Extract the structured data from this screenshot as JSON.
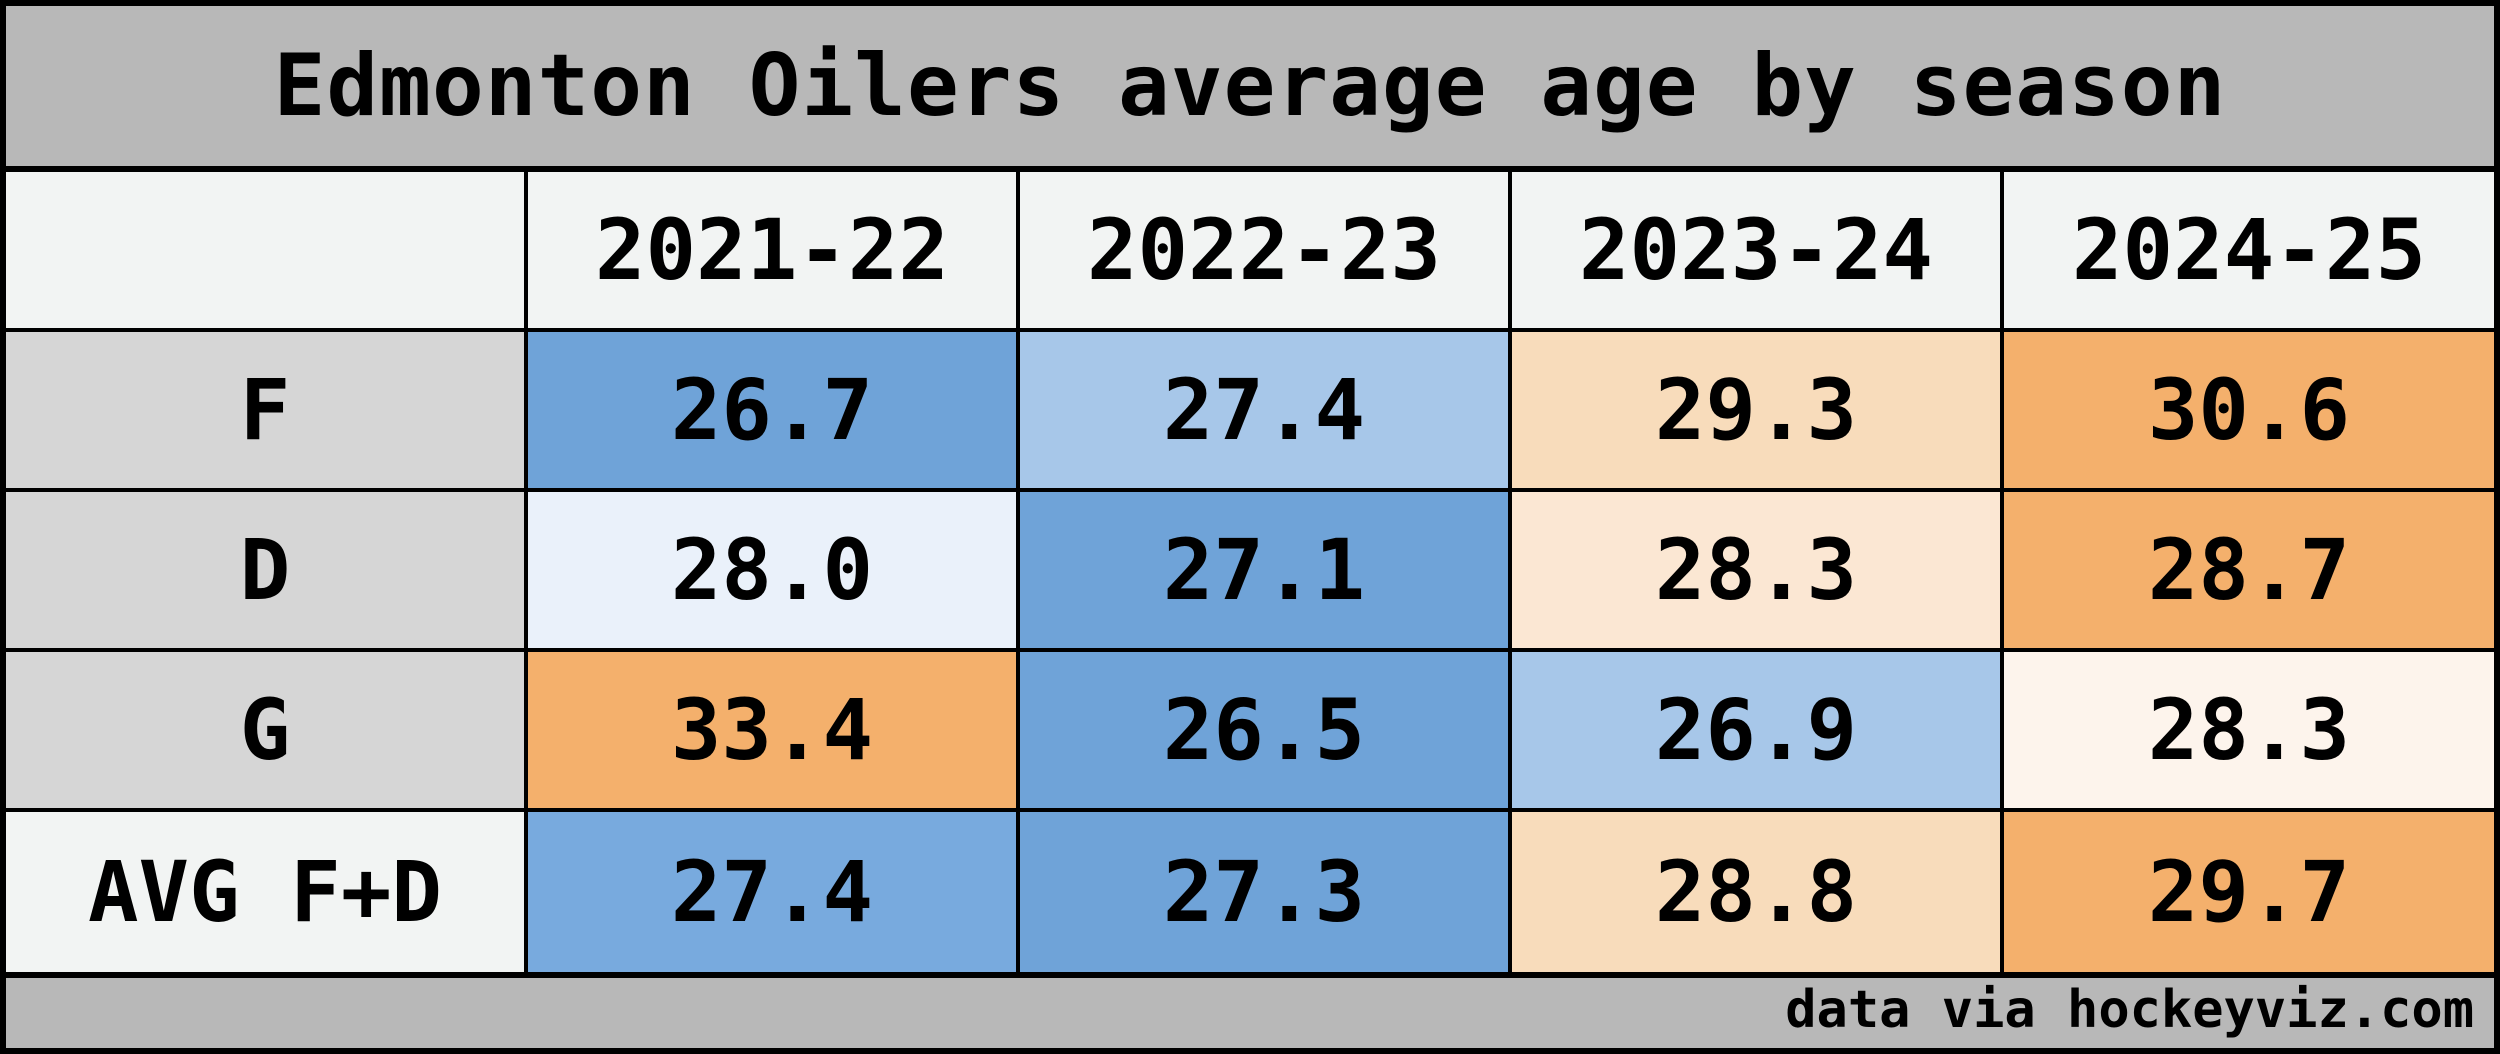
{
  "chart_data": {
    "type": "table",
    "title": "Edmonton Oilers average age by season",
    "columns": [
      "2021-22",
      "2022-23",
      "2023-24",
      "2024-25"
    ],
    "rows": [
      {
        "label": "F",
        "values": [
          "26.7",
          "27.4",
          "29.3",
          "30.6"
        ],
        "colors": [
          "#6fa3d8",
          "#a7c7e9",
          "#f8dcbb",
          "#f4b06c"
        ]
      },
      {
        "label": "D",
        "values": [
          "28.0",
          "27.1",
          "28.3",
          "28.7"
        ],
        "colors": [
          "#eaf1fa",
          "#6fa3d8",
          "#fbe7d3",
          "#f4b06c"
        ]
      },
      {
        "label": "G",
        "values": [
          "33.4",
          "26.5",
          "26.9",
          "28.3"
        ],
        "colors": [
          "#f4b06c",
          "#6fa3d8",
          "#a7c7e9",
          "#fdf4ec"
        ]
      },
      {
        "label": "AVG F+D",
        "values": [
          "27.4",
          "27.3",
          "28.8",
          "29.7"
        ],
        "colors": [
          "#78aade",
          "#6fa3d8",
          "#f8dcbb",
          "#f4b06c"
        ]
      }
    ],
    "footer": "data via hockeyviz.com"
  }
}
